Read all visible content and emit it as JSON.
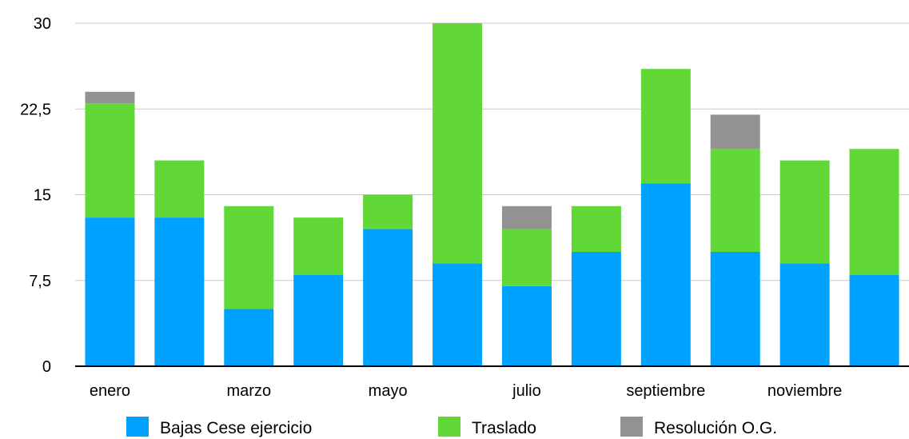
{
  "chart_data": {
    "type": "bar",
    "stacked": true,
    "categories": [
      "enero",
      "febrero",
      "marzo",
      "abril",
      "mayo",
      "junio",
      "julio",
      "agosto",
      "septiembre",
      "octubre",
      "noviembre",
      "diciembre"
    ],
    "shown_category_labels": [
      "enero",
      "",
      "marzo",
      "",
      "mayo",
      "",
      "julio",
      "",
      "septiembre",
      "",
      "noviembre",
      ""
    ],
    "series": [
      {
        "name": "Bajas Cese ejercicio",
        "color": "#00a2ff",
        "values": [
          13,
          13,
          5,
          8,
          12,
          9,
          7,
          10,
          16,
          10,
          9,
          8
        ]
      },
      {
        "name": "Traslado",
        "color": "#61d836",
        "values": [
          10,
          5,
          9,
          5,
          3,
          21,
          5,
          4,
          10,
          9,
          9,
          11
        ]
      },
      {
        "name": "Resolución O.G.",
        "color": "#929292",
        "values": [
          1,
          0,
          0,
          0,
          0,
          0,
          2,
          0,
          0,
          3,
          0,
          0
        ]
      }
    ],
    "ylim": [
      0,
      30
    ],
    "yticks": [
      "0",
      "7,5",
      "15",
      "22,5",
      "30"
    ],
    "ytick_values": [
      0,
      7.5,
      15,
      22.5,
      30
    ],
    "grid": true,
    "legend_position": "bottom"
  }
}
